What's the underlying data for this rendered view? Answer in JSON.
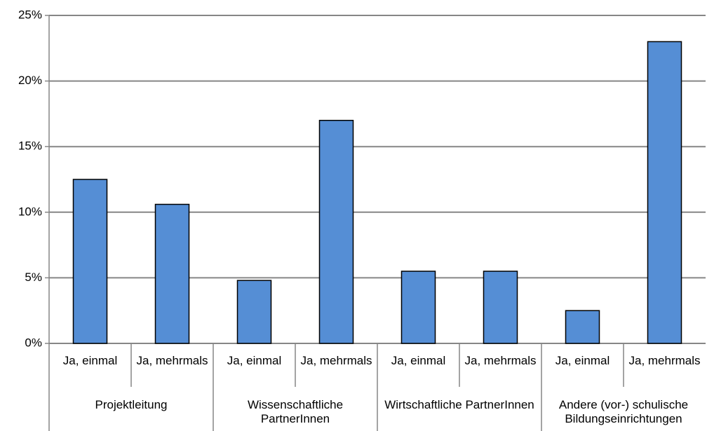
{
  "chart_data": {
    "type": "bar",
    "categories": [
      "Ja, einmal",
      "Ja, mehrmals",
      "Ja, einmal",
      "Ja, mehrmals",
      "Ja, einmal",
      "Ja, mehrmals",
      "Ja, einmal",
      "Ja, mehrmals"
    ],
    "groups": [
      "Projektleitung",
      "Wissenschaftliche PartnerInnen",
      "Wirtschaftliche PartnerInnen",
      "Andere (vor-) schulische Bildungseinrichtungen"
    ],
    "values": [
      12.5,
      10.6,
      4.8,
      17,
      5.5,
      5.5,
      2.5,
      23
    ],
    "color": "#558ed5",
    "ylim": [
      0,
      25
    ],
    "yticks": [
      {
        "value": 0,
        "label": "0%"
      },
      {
        "value": 5,
        "label": "5%"
      },
      {
        "value": 10,
        "label": "10%"
      },
      {
        "value": 15,
        "label": "15%"
      },
      {
        "value": 20,
        "label": "20%"
      },
      {
        "value": 25,
        "label": "25%"
      }
    ],
    "grid": true
  }
}
